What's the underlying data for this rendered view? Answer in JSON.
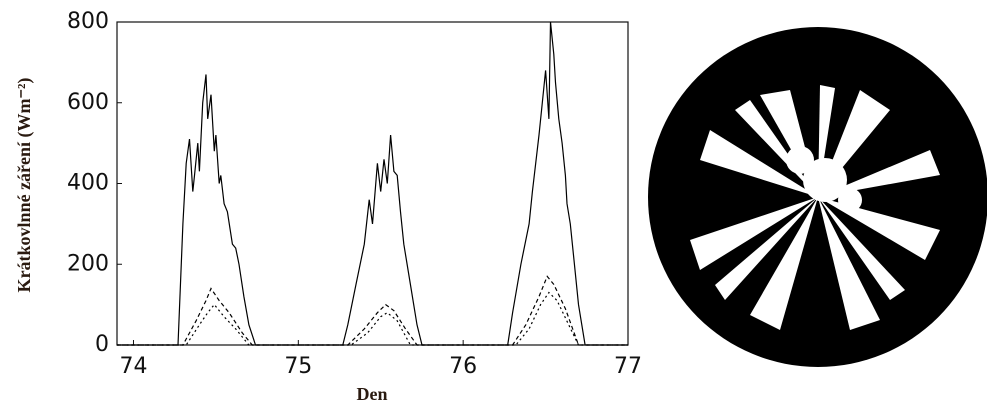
{
  "chart_data": {
    "type": "line",
    "x_label": "Den",
    "y_label": "Krátkovlnné záření (Wm⁻²)",
    "xlim": [
      73.9,
      77
    ],
    "xticks": [
      74,
      75,
      76,
      77
    ],
    "ylim": [
      0,
      800
    ],
    "yticks": [
      0,
      200,
      400,
      600,
      800
    ],
    "series": [
      {
        "color": "#000000",
        "dash": "none",
        "x": [
          73.9,
          74.27,
          74.3,
          74.32,
          74.34,
          74.36,
          74.37,
          74.39,
          74.4,
          74.42,
          74.44,
          74.45,
          74.47,
          74.49,
          74.5,
          74.52,
          74.53,
          74.55,
          74.57,
          74.6,
          74.62,
          74.64,
          74.67,
          74.7,
          74.74,
          75.27,
          75.3,
          75.35,
          75.4,
          75.43,
          75.45,
          75.48,
          75.5,
          75.52,
          75.54,
          75.56,
          75.58,
          75.6,
          75.62,
          75.64,
          75.68,
          75.72,
          75.75,
          76.27,
          76.3,
          76.35,
          76.4,
          76.42,
          76.44,
          76.46,
          76.48,
          76.5,
          76.52,
          76.53,
          76.55,
          76.56,
          76.58,
          76.6,
          76.62,
          76.63,
          76.65,
          76.67,
          76.7,
          76.74,
          77
        ],
        "values": [
          0,
          0,
          300,
          450,
          510,
          380,
          420,
          500,
          430,
          600,
          670,
          560,
          620,
          480,
          520,
          400,
          420,
          350,
          330,
          250,
          240,
          200,
          120,
          50,
          0,
          0,
          50,
          150,
          250,
          360,
          300,
          450,
          380,
          460,
          400,
          520,
          430,
          420,
          330,
          250,
          150,
          50,
          0,
          0,
          80,
          200,
          300,
          380,
          450,
          520,
          600,
          680,
          560,
          800,
          720,
          650,
          560,
          500,
          420,
          350,
          300,
          220,
          100,
          0,
          0
        ]
      },
      {
        "color": "#000000",
        "dash": "4 3",
        "x": [
          73.9,
          74.3,
          74.38,
          74.44,
          74.47,
          74.52,
          74.58,
          74.66,
          74.72,
          75.3,
          75.4,
          75.48,
          75.53,
          75.58,
          75.65,
          75.72,
          76.3,
          76.38,
          76.46,
          76.51,
          76.55,
          76.62,
          76.7,
          77
        ],
        "values": [
          0,
          0,
          60,
          110,
          140,
          110,
          80,
          30,
          0,
          0,
          40,
          80,
          100,
          85,
          40,
          0,
          0,
          50,
          120,
          170,
          150,
          90,
          0,
          0
        ]
      },
      {
        "color": "#000000",
        "dash": "2 3",
        "x": [
          73.9,
          74.32,
          74.4,
          74.45,
          74.49,
          74.55,
          74.62,
          74.7,
          75.32,
          75.42,
          75.5,
          75.54,
          75.6,
          75.68,
          76.32,
          76.4,
          76.47,
          76.52,
          76.57,
          76.64,
          76.7,
          77
        ],
        "values": [
          0,
          0,
          50,
          80,
          100,
          70,
          40,
          0,
          0,
          30,
          70,
          80,
          60,
          0,
          0,
          40,
          100,
          130,
          110,
          50,
          0,
          0
        ]
      }
    ]
  }
}
